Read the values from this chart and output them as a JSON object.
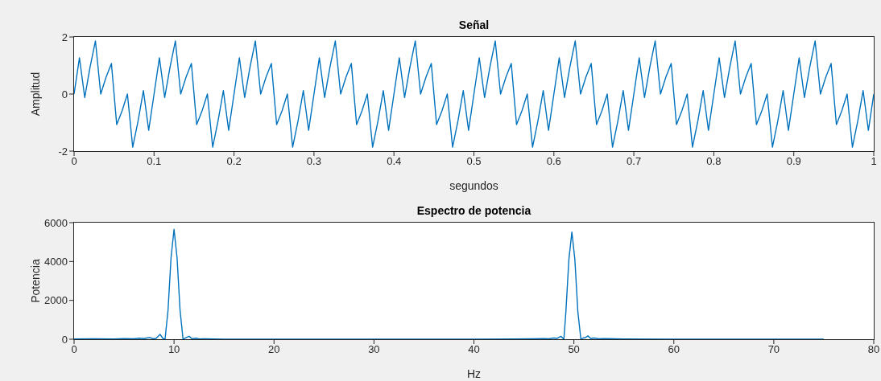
{
  "chart_data": [
    {
      "type": "line",
      "title": "Señal",
      "xlabel": "segundos",
      "ylabel": "Amplitud",
      "xlim": [
        0,
        1
      ],
      "xticks": [
        0,
        0.1,
        0.2,
        0.3,
        0.4,
        0.5,
        0.6,
        0.7,
        0.8,
        0.9,
        1
      ],
      "ylim": [
        -2,
        2
      ],
      "yticks": [
        -2,
        0,
        2
      ],
      "x": [
        0,
        0.0067,
        0.0133,
        0.02,
        0.0267,
        0.0333,
        0.04,
        0.0467,
        0.0533,
        0.06,
        0.0667,
        0.0733,
        0.08,
        0.0867,
        0.0933,
        0.1,
        0.1067,
        0.1133,
        0.12,
        0.1267,
        0.1333,
        0.14,
        0.1467,
        0.1533,
        0.16,
        0.1667,
        0.1733,
        0.18,
        0.1867,
        0.1933,
        0.2,
        0.2067,
        0.2133,
        0.22,
        0.2267,
        0.2333,
        0.24,
        0.2467,
        0.2533,
        0.26,
        0.2667,
        0.2733,
        0.28,
        0.2867,
        0.2933,
        0.3,
        0.3067,
        0.3133,
        0.32,
        0.3267,
        0.3333,
        0.34,
        0.3467,
        0.3533,
        0.36,
        0.3667,
        0.3733,
        0.38,
        0.3867,
        0.3933,
        0.4,
        0.4067,
        0.4133,
        0.42,
        0.4267,
        0.4333,
        0.44,
        0.4467,
        0.4533,
        0.46,
        0.4667,
        0.4733,
        0.48,
        0.4867,
        0.4933,
        0.5,
        0.5067,
        0.5133,
        0.52,
        0.5267,
        0.5333,
        0.54,
        0.5467,
        0.5533,
        0.56,
        0.5667,
        0.5733,
        0.58,
        0.5867,
        0.5933,
        0.6,
        0.6067,
        0.6133,
        0.62,
        0.6267,
        0.6333,
        0.64,
        0.6467,
        0.6533,
        0.66,
        0.6667,
        0.6733,
        0.68,
        0.6867,
        0.6933,
        0.7,
        0.7067,
        0.7133,
        0.72,
        0.7267,
        0.7333,
        0.74,
        0.7467,
        0.7533,
        0.76,
        0.7667,
        0.7733,
        0.78,
        0.7867,
        0.7933,
        0.8,
        0.8067,
        0.8133,
        0.82,
        0.8267,
        0.8333,
        0.84,
        0.8467,
        0.8533,
        0.86,
        0.8667,
        0.8733,
        0.88,
        0.8867,
        0.8933,
        0.9,
        0.9067,
        0.9133,
        0.92,
        0.9267,
        0.9333,
        0.94,
        0.9467,
        0.9533,
        0.96,
        0.9667,
        0.9733,
        0.98,
        0.9867,
        0.9933,
        1
      ],
      "series": [
        {
          "color": "#0072bd",
          "values": [
            0,
            1.27,
            -0.12,
            0.95,
            1.86,
            0,
            0.59,
            1.07,
            -1.07,
            -0.59,
            0,
            -1.86,
            -0.95,
            0.12,
            -1.27,
            0,
            1.27,
            -0.12,
            0.95,
            1.86,
            0,
            0.59,
            1.07,
            -1.07,
            -0.59,
            0,
            -1.86,
            -0.95,
            0.12,
            -1.27,
            0,
            1.27,
            -0.12,
            0.95,
            1.86,
            0,
            0.59,
            1.07,
            -1.07,
            -0.59,
            0,
            -1.86,
            -0.95,
            0.12,
            -1.27,
            0,
            1.27,
            -0.12,
            0.95,
            1.86,
            0,
            0.59,
            1.07,
            -1.07,
            -0.59,
            0,
            -1.86,
            -0.95,
            0.12,
            -1.27,
            0,
            1.27,
            -0.12,
            0.95,
            1.86,
            0,
            0.59,
            1.07,
            -1.07,
            -0.59,
            0,
            -1.86,
            -0.95,
            0.12,
            -1.27,
            0,
            1.27,
            -0.12,
            0.95,
            1.86,
            0,
            0.59,
            1.07,
            -1.07,
            -0.59,
            0,
            -1.86,
            -0.95,
            0.12,
            -1.27,
            0,
            1.27,
            -0.12,
            0.95,
            1.86,
            0,
            0.59,
            1.07,
            -1.07,
            -0.59,
            0,
            -1.86,
            -0.95,
            0.12,
            -1.27,
            0,
            1.27,
            -0.12,
            0.95,
            1.86,
            0,
            0.59,
            1.07,
            -1.07,
            -0.59,
            0,
            -1.86,
            -0.95,
            0.12,
            -1.27,
            0,
            1.27,
            -0.12,
            0.95,
            1.86,
            0,
            0.59,
            1.07,
            -1.07,
            -0.59,
            0,
            -1.86,
            -0.95,
            0.12,
            -1.27,
            0,
            1.27,
            -0.12,
            0.95,
            1.86,
            0,
            0.59,
            1.07,
            -1.07,
            -0.59,
            0,
            -1.86,
            -0.95,
            0.12,
            -1.27,
            0
          ]
        }
      ]
    },
    {
      "type": "line",
      "title": "Espectro de potencia",
      "xlabel": "Hz",
      "ylabel": "Potencia",
      "xlim": [
        0,
        80
      ],
      "xticks": [
        0,
        10,
        20,
        30,
        40,
        50,
        60,
        70,
        80
      ],
      "ylim": [
        0,
        6000
      ],
      "yticks": [
        0,
        2000,
        4000,
        6000
      ],
      "x": [
        0,
        2,
        4,
        5,
        6,
        6.5,
        7,
        7.3,
        7.6,
        7.9,
        8.2,
        8.6,
        8.9,
        9.1,
        9.4,
        9.7,
        10,
        10.3,
        10.6,
        10.9,
        11.2,
        11.5,
        11.8,
        12.2,
        12.5,
        13,
        14,
        15,
        20,
        25,
        30,
        35,
        40,
        44,
        46,
        47,
        47.5,
        48,
        48.3,
        48.7,
        49,
        49.2,
        49.5,
        49.8,
        50.1,
        50.4,
        50.7,
        51,
        51.1,
        51.4,
        51.7,
        52,
        52.5,
        53,
        55,
        60,
        65,
        70,
        75
      ],
      "series": [
        {
          "color": "#0072bd",
          "values": [
            10,
            20,
            10,
            30,
            20,
            50,
            30,
            60,
            80,
            20,
            40,
            250,
            30,
            0,
            1500,
            4200,
            5660,
            4200,
            1500,
            0,
            80,
            150,
            20,
            50,
            10,
            20,
            10,
            0,
            0,
            0,
            0,
            0,
            0,
            10,
            20,
            30,
            20,
            60,
            40,
            150,
            0,
            1400,
            4100,
            5520,
            4100,
            1400,
            0,
            80,
            60,
            170,
            30,
            60,
            20,
            30,
            10,
            0,
            0,
            0,
            0
          ]
        }
      ]
    }
  ]
}
